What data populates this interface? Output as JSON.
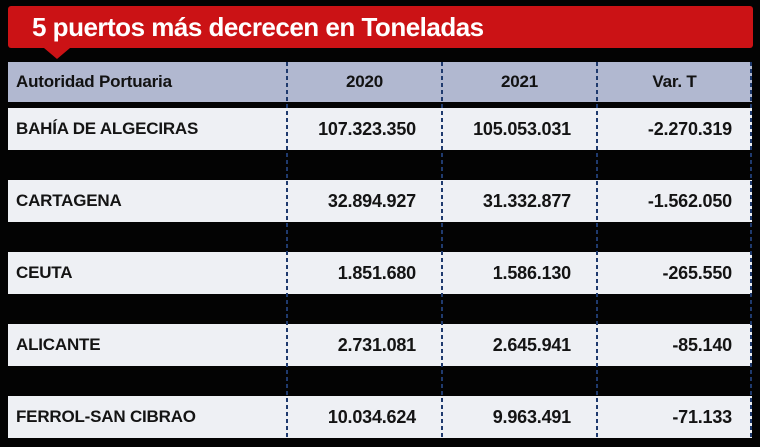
{
  "title": "5 puertos más decrecen en Toneladas",
  "chart_data": {
    "type": "table",
    "title": "5 puertos más decrecen en Toneladas",
    "columns": [
      "Autoridad Portuaria",
      "2020",
      "2021",
      "Var. T"
    ],
    "rows": [
      {
        "name": "BAHÍA DE ALGECIRAS",
        "y2020": "107.323.350",
        "y2021": "105.053.031",
        "var_t": "-2.270.319"
      },
      {
        "name": "CARTAGENA",
        "y2020": "32.894.927",
        "y2021": "31.332.877",
        "var_t": "-1.562.050"
      },
      {
        "name": "CEUTA",
        "y2020": "1.851.680",
        "y2021": "1.586.130",
        "var_t": "-265.550"
      },
      {
        "name": "ALICANTE",
        "y2020": "2.731.081",
        "y2021": "2.645.941",
        "var_t": "-85.140"
      },
      {
        "name": "FERROL-SAN CIBRAO",
        "y2020": "10.034.624",
        "y2021": "9.963.491",
        "var_t": "-71.133"
      }
    ],
    "colors": {
      "banner_red": "#cb1215",
      "header_bg": "#b1b8d0",
      "row_bg": "#eef0f4",
      "grid_line": "#1f3a6e",
      "background": "#030303",
      "title_text": "#ffffff",
      "cell_text": "#141414"
    },
    "layout": {
      "grid": "dashed-vertical-dividers",
      "units": "toneladas"
    }
  }
}
